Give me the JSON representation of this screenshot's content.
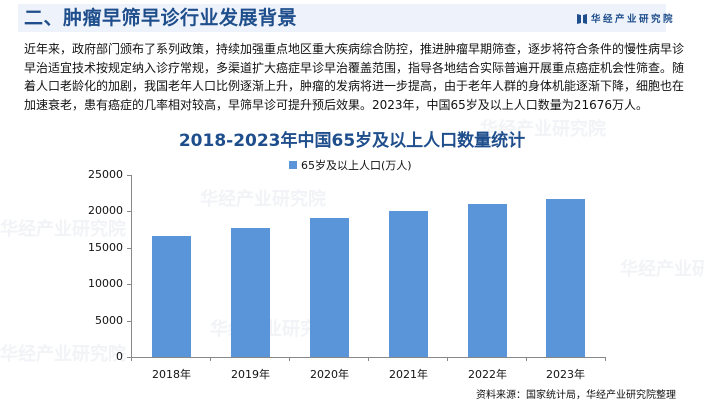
{
  "header": {
    "title": "二、肿瘤早筛早诊行业发展背景",
    "brand": "华经产业研究院"
  },
  "body": {
    "paragraph": "近年来，政府部门颁布了系列政策，持续加强重点地区重大疾病综合防控，推进肿瘤早期筛查，逐步将符合条件的慢性病早诊早治适宜技术按规定纳入诊疗常规，多渠道扩大癌症早诊早治覆盖范围，指导各地结合实际普遍开展重点癌症机会性筛查。随着人口老龄化的加剧，我国老年人口比例逐渐上升，肿瘤的发病将进一步提高，由于老年人群的身体机能逐渐下降，细胞也在加速衰老，患有癌症的几率相对较高，早筛早诊可提升预后效果。2023年，中国65岁及以上人口数量为21676万人。"
  },
  "chart": {
    "title": "2018-2023年中国65岁及以上人口数量统计",
    "legend": "65岁及以上人口(万人)",
    "y_ticks": [
      "25000",
      "20000",
      "15000",
      "10000",
      "5000",
      "0"
    ],
    "x_labels": [
      "2018年",
      "2019年",
      "2020年",
      "2021年",
      "2022年",
      "2023年"
    ]
  },
  "source": "资料来源：国家统计局，华经产业研究院整理",
  "watermark": "华经产业研究院",
  "colors": {
    "accent": "#1f4e8c",
    "bar": "#5b95d9",
    "header_bg": "#eef3fb"
  },
  "chart_data": {
    "type": "bar",
    "title": "2018-2023年中国65岁及以上人口数量统计",
    "categories": [
      "2018年",
      "2019年",
      "2020年",
      "2021年",
      "2022年",
      "2023年"
    ],
    "series": [
      {
        "name": "65岁及以上人口(万人)",
        "values": [
          16658,
          17767,
          19064,
          20056,
          20978,
          21676
        ]
      }
    ],
    "xlabel": "",
    "ylabel": "",
    "ylim": [
      0,
      25000
    ],
    "y_ticks": [
      0,
      5000,
      10000,
      15000,
      20000,
      25000
    ],
    "grid": false,
    "legend_position": "top"
  }
}
